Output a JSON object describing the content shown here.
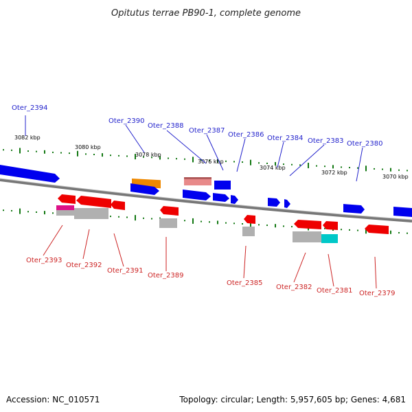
{
  "title": "Opitutus terrae PB90-1, complete genome",
  "footer": {
    "accession": "Accession: NC_010571",
    "summary": "Topology: circular; Length: 5,957,605 bp; Genes: 4,681"
  },
  "ruler": [
    "3082 kbp",
    "3080 kbp",
    "3078 kbp",
    "3076 kbp",
    "3074 kbp",
    "3072 kbp",
    "3070 kbp"
  ],
  "genes_forward": [
    "Oter_2394",
    "Oter_2390",
    "Oter_2388",
    "Oter_2387",
    "Oter_2386",
    "Oter_2384",
    "Oter_2383",
    "Oter_2380"
  ],
  "genes_reverse": [
    "Oter_2393",
    "Oter_2392",
    "Oter_2391",
    "Oter_2389",
    "Oter_2385",
    "Oter_2382",
    "Oter_2381",
    "Oter_2379"
  ],
  "colors": {
    "forward": "#0000ee",
    "reverse": "#ee0000",
    "rna": "#ee8800",
    "pink": "#e88a8a",
    "magenta": "#dd1188",
    "cyan": "#00c8c8",
    "gray": "#b0b0b0",
    "backbone": "#777777",
    "tick": "#117711"
  }
}
